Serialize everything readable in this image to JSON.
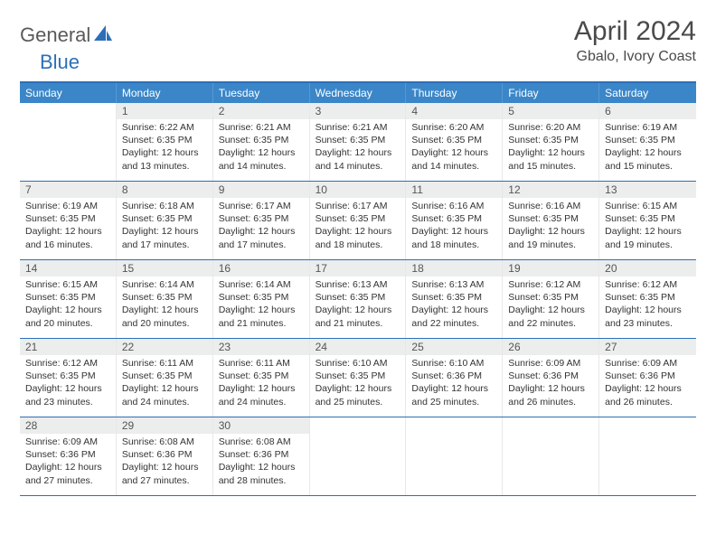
{
  "brand": {
    "part1": "General",
    "part2": "Blue"
  },
  "title": "April 2024",
  "location": "Gbalo, Ivory Coast",
  "colors": {
    "header_bg": "#3b86c8",
    "border": "#2d6fb7",
    "daynum_bg": "#eceded",
    "text_dark": "#333333",
    "text_gray": "#4a4a4a"
  },
  "dows": [
    "Sunday",
    "Monday",
    "Tuesday",
    "Wednesday",
    "Thursday",
    "Friday",
    "Saturday"
  ],
  "start_offset": 1,
  "days": [
    {
      "n": 1,
      "sr": "6:22 AM",
      "ss": "6:35 PM",
      "dl": "12 hours and 13 minutes."
    },
    {
      "n": 2,
      "sr": "6:21 AM",
      "ss": "6:35 PM",
      "dl": "12 hours and 14 minutes."
    },
    {
      "n": 3,
      "sr": "6:21 AM",
      "ss": "6:35 PM",
      "dl": "12 hours and 14 minutes."
    },
    {
      "n": 4,
      "sr": "6:20 AM",
      "ss": "6:35 PM",
      "dl": "12 hours and 14 minutes."
    },
    {
      "n": 5,
      "sr": "6:20 AM",
      "ss": "6:35 PM",
      "dl": "12 hours and 15 minutes."
    },
    {
      "n": 6,
      "sr": "6:19 AM",
      "ss": "6:35 PM",
      "dl": "12 hours and 15 minutes."
    },
    {
      "n": 7,
      "sr": "6:19 AM",
      "ss": "6:35 PM",
      "dl": "12 hours and 16 minutes."
    },
    {
      "n": 8,
      "sr": "6:18 AM",
      "ss": "6:35 PM",
      "dl": "12 hours and 17 minutes."
    },
    {
      "n": 9,
      "sr": "6:17 AM",
      "ss": "6:35 PM",
      "dl": "12 hours and 17 minutes."
    },
    {
      "n": 10,
      "sr": "6:17 AM",
      "ss": "6:35 PM",
      "dl": "12 hours and 18 minutes."
    },
    {
      "n": 11,
      "sr": "6:16 AM",
      "ss": "6:35 PM",
      "dl": "12 hours and 18 minutes."
    },
    {
      "n": 12,
      "sr": "6:16 AM",
      "ss": "6:35 PM",
      "dl": "12 hours and 19 minutes."
    },
    {
      "n": 13,
      "sr": "6:15 AM",
      "ss": "6:35 PM",
      "dl": "12 hours and 19 minutes."
    },
    {
      "n": 14,
      "sr": "6:15 AM",
      "ss": "6:35 PM",
      "dl": "12 hours and 20 minutes."
    },
    {
      "n": 15,
      "sr": "6:14 AM",
      "ss": "6:35 PM",
      "dl": "12 hours and 20 minutes."
    },
    {
      "n": 16,
      "sr": "6:14 AM",
      "ss": "6:35 PM",
      "dl": "12 hours and 21 minutes."
    },
    {
      "n": 17,
      "sr": "6:13 AM",
      "ss": "6:35 PM",
      "dl": "12 hours and 21 minutes."
    },
    {
      "n": 18,
      "sr": "6:13 AM",
      "ss": "6:35 PM",
      "dl": "12 hours and 22 minutes."
    },
    {
      "n": 19,
      "sr": "6:12 AM",
      "ss": "6:35 PM",
      "dl": "12 hours and 22 minutes."
    },
    {
      "n": 20,
      "sr": "6:12 AM",
      "ss": "6:35 PM",
      "dl": "12 hours and 23 minutes."
    },
    {
      "n": 21,
      "sr": "6:12 AM",
      "ss": "6:35 PM",
      "dl": "12 hours and 23 minutes."
    },
    {
      "n": 22,
      "sr": "6:11 AM",
      "ss": "6:35 PM",
      "dl": "12 hours and 24 minutes."
    },
    {
      "n": 23,
      "sr": "6:11 AM",
      "ss": "6:35 PM",
      "dl": "12 hours and 24 minutes."
    },
    {
      "n": 24,
      "sr": "6:10 AM",
      "ss": "6:35 PM",
      "dl": "12 hours and 25 minutes."
    },
    {
      "n": 25,
      "sr": "6:10 AM",
      "ss": "6:36 PM",
      "dl": "12 hours and 25 minutes."
    },
    {
      "n": 26,
      "sr": "6:09 AM",
      "ss": "6:36 PM",
      "dl": "12 hours and 26 minutes."
    },
    {
      "n": 27,
      "sr": "6:09 AM",
      "ss": "6:36 PM",
      "dl": "12 hours and 26 minutes."
    },
    {
      "n": 28,
      "sr": "6:09 AM",
      "ss": "6:36 PM",
      "dl": "12 hours and 27 minutes."
    },
    {
      "n": 29,
      "sr": "6:08 AM",
      "ss": "6:36 PM",
      "dl": "12 hours and 27 minutes."
    },
    {
      "n": 30,
      "sr": "6:08 AM",
      "ss": "6:36 PM",
      "dl": "12 hours and 28 minutes."
    }
  ],
  "labels": {
    "sunrise": "Sunrise:",
    "sunset": "Sunset:",
    "daylight": "Daylight:"
  }
}
